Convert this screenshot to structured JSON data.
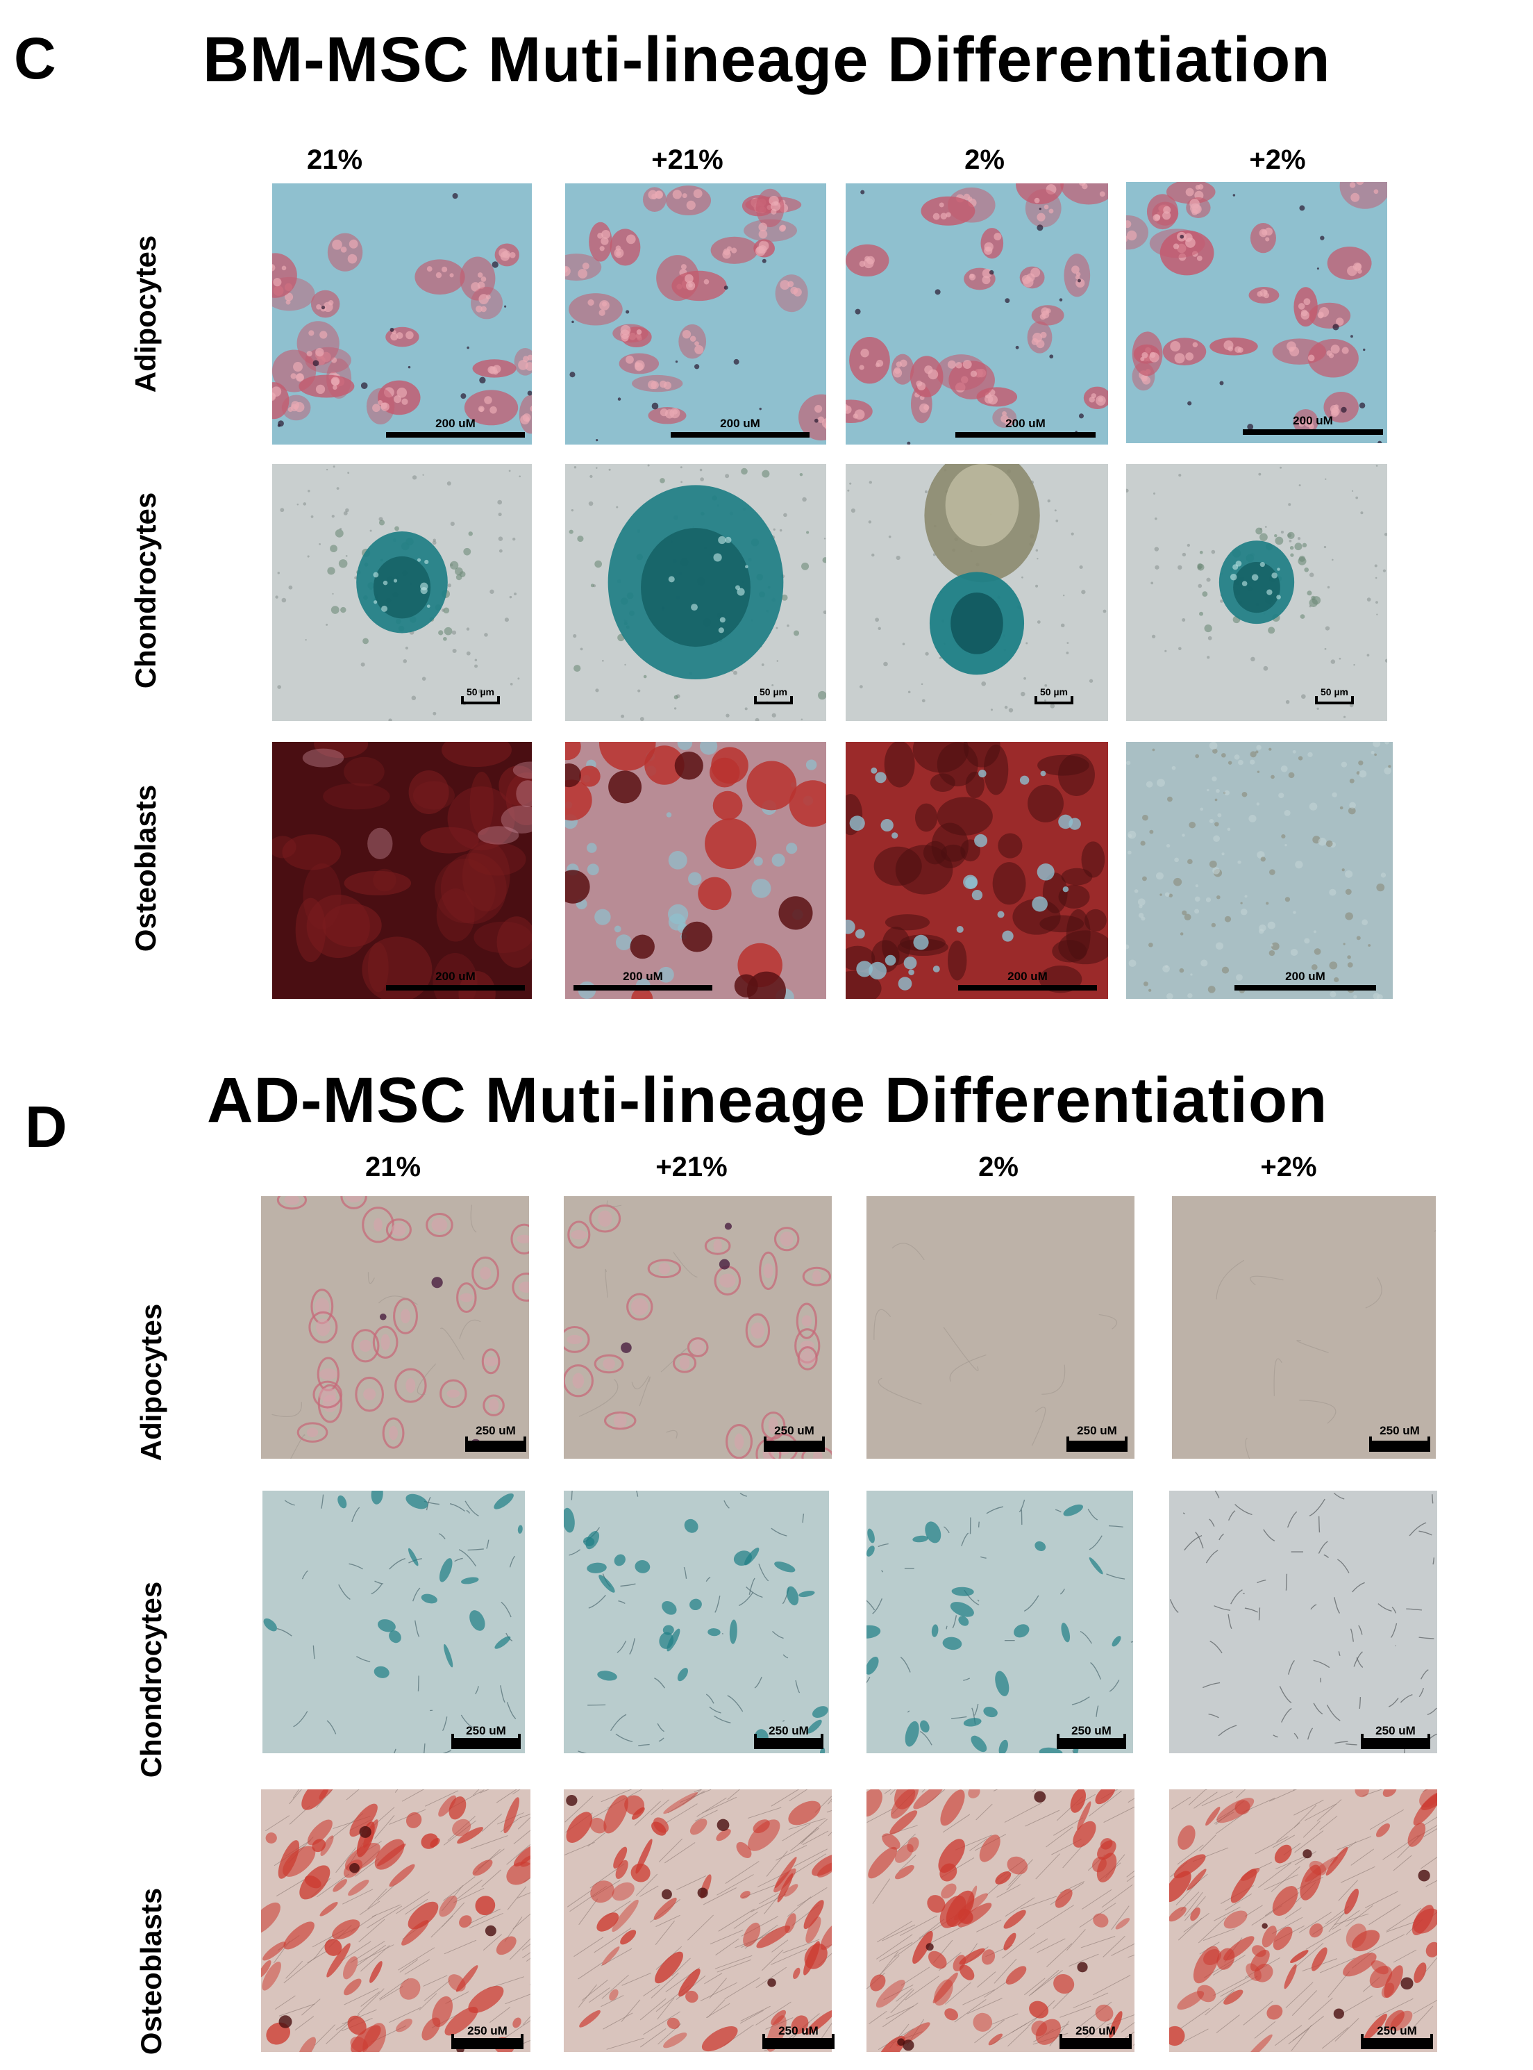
{
  "panel_c": {
    "letter": "C",
    "title": "BM-MSC Muti-lineage Differentiation",
    "columns": [
      "21%",
      "+21%",
      "2%",
      "+2%"
    ],
    "rows": [
      "Adipocytes",
      "Chondrocytes",
      "Osteoblasts"
    ],
    "scale_bars": {
      "adipocytes": [
        "200 uM",
        "200 uM",
        "200 uM",
        "200 uM"
      ],
      "chondrocytes": [
        "50 µm",
        "50 µm",
        "50 µm",
        "50 µm"
      ],
      "osteoblasts": [
        "200 uM",
        "200 uM",
        "200 uM",
        "200 uM"
      ]
    }
  },
  "panel_d": {
    "letter": "D",
    "title": "AD-MSC Muti-lineage Differentiation",
    "columns": [
      "21%",
      "+21%",
      "2%",
      "+2%"
    ],
    "rows": [
      "Adipocytes",
      "Chondrocytes",
      "Osteoblasts"
    ],
    "scale_bars": {
      "adipocytes": [
        "250 uM",
        "250 uM",
        "250 uM",
        "250 uM"
      ],
      "chondrocytes": [
        "250 uM",
        "250 uM",
        "250 uM",
        "250 uM"
      ],
      "osteoblasts": [
        "250 uM",
        "250 uM",
        "250 uM",
        "250 uM"
      ]
    }
  },
  "colors": {
    "adipo_bg_bm": "#8fc0cf",
    "adipo_stain": "#c45a6e",
    "chondro_bg": "#c9cfcf",
    "alcian_blue": "#1f7f86",
    "osteo_dark": "#4a0e12",
    "osteo_red": "#b8332f",
    "osteo_unstained": "#a9bfc4",
    "adipo_bg_ad": "#bdb2a8",
    "chondro_bg_ad": "#b9cccd",
    "osteo_ad_bg": "#d9c4bd"
  }
}
